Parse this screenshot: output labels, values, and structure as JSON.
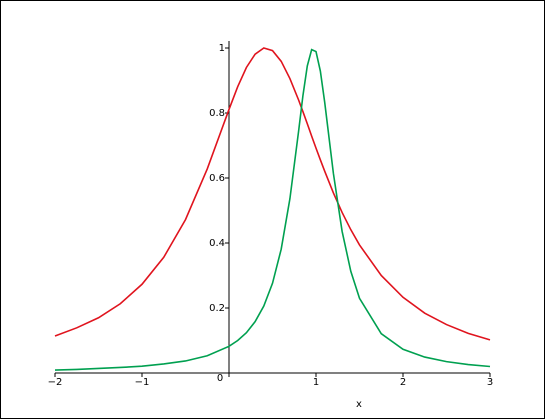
{
  "chart_data": {
    "type": "line",
    "x_label": "x",
    "x": [
      -2,
      -1.75,
      -1.5,
      -1.25,
      -1,
      -0.75,
      -0.5,
      -0.25,
      0,
      0.1,
      0.2,
      0.3,
      0.4,
      0.5,
      0.6,
      0.7,
      0.8,
      0.85,
      0.9,
      0.95,
      1.0,
      1.05,
      1.1,
      1.2,
      1.3,
      1.4,
      1.5,
      1.75,
      2,
      2.25,
      2.5,
      2.75,
      3
    ],
    "series": [
      {
        "color": "#e0141e",
        "values": [
          0.114,
          0.139,
          0.17,
          0.213,
          0.273,
          0.356,
          0.472,
          0.628,
          0.811,
          0.881,
          0.94,
          0.981,
          1.0,
          0.992,
          0.959,
          0.906,
          0.84,
          0.804,
          0.767,
          0.729,
          0.692,
          0.656,
          0.621,
          0.554,
          0.494,
          0.441,
          0.394,
          0.3,
          0.233,
          0.184,
          0.149,
          0.122,
          0.102
        ]
      },
      {
        "color": "#00a050",
        "values": [
          0.009,
          0.011,
          0.014,
          0.017,
          0.021,
          0.028,
          0.037,
          0.053,
          0.082,
          0.1,
          0.124,
          0.158,
          0.206,
          0.276,
          0.381,
          0.536,
          0.744,
          0.854,
          0.945,
          0.995,
          0.989,
          0.929,
          0.833,
          0.614,
          0.436,
          0.313,
          0.23,
          0.121,
          0.073,
          0.049,
          0.035,
          0.026,
          0.02
        ]
      }
    ],
    "xlim": [
      -2,
      3
    ],
    "ylim": [
      0,
      1
    ],
    "xticks": [
      {
        "value": -2,
        "label": "−2"
      },
      {
        "value": -1,
        "label": "−1"
      },
      0,
      1,
      2,
      3
    ],
    "yticks": [
      0.2,
      0.4,
      0.6,
      0.8,
      1
    ]
  }
}
